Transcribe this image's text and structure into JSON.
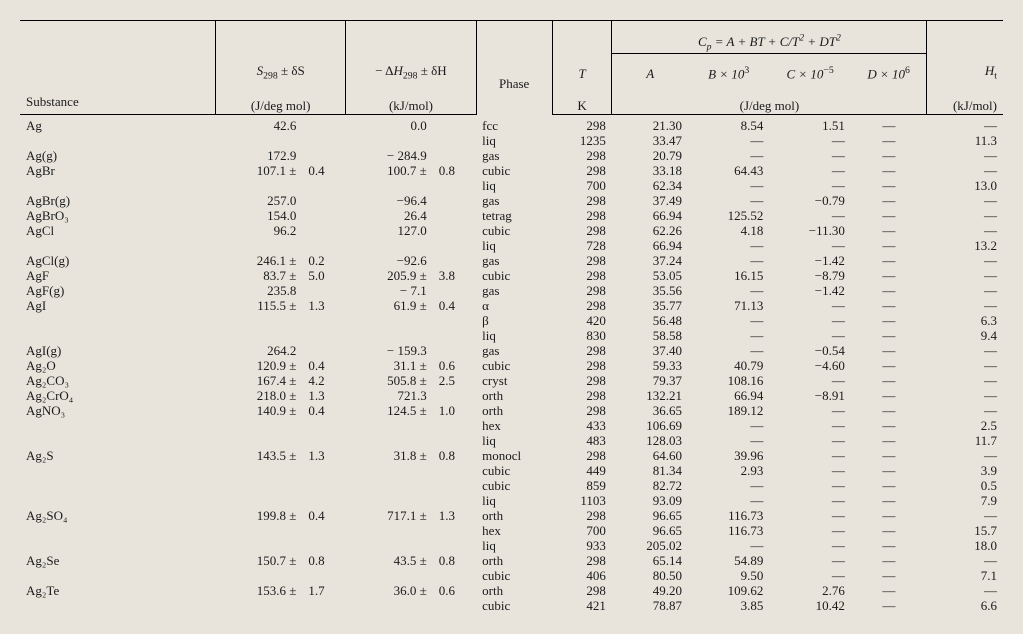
{
  "header": {
    "formula": "C_p = A + BT + C/T^2 + DT^2",
    "S_label_main": "S",
    "S_label_sub": "298",
    "S_label_err": " ± δS",
    "S_units": "(J/deg mol)",
    "H_label_prefix": "− Δ",
    "H_label_main": "H",
    "H_label_sub": "298",
    "H_label_err": "  ± δH",
    "H_units": "(kJ/mol)",
    "phase": "Phase",
    "T_label": "T",
    "T_units": "K",
    "A_label": "A",
    "B_label": "B × 10",
    "B_exp": "3",
    "C_label": "C × 10",
    "C_exp": "−5",
    "D_label": "D × 10",
    "D_exp": "6",
    "Cp_units": "(J/deg mol)",
    "Ht_label": "H",
    "Ht_sub": "t",
    "Ht_units": "(kJ/mol)",
    "substance": "Substance"
  },
  "dash": "—",
  "rows": [
    {
      "sub": "Ag",
      "S": "42.6",
      "Se": "",
      "H": "0.0",
      "He": "",
      "ph": "fcc",
      "T": "298",
      "A": "21.30",
      "B": "8.54",
      "C": "1.51",
      "D": "—",
      "Ht": "—"
    },
    {
      "sub": "",
      "S": "",
      "Se": "",
      "H": "",
      "He": "",
      "ph": "liq",
      "T": "1235",
      "A": "33.47",
      "B": "—",
      "C": "—",
      "D": "—",
      "Ht": "11.3"
    },
    {
      "sub": "Ag(g)",
      "S": "172.9",
      "Se": "",
      "H": "− 284.9",
      "He": "",
      "ph": "gas",
      "T": "298",
      "A": "20.79",
      "B": "—",
      "C": "—",
      "D": "—",
      "Ht": "—"
    },
    {
      "sub": "AgBr",
      "S": "107.1 ±",
      "Se": "0.4",
      "H": "100.7 ±",
      "He": "0.8",
      "ph": "cubic",
      "T": "298",
      "A": "33.18",
      "B": "64.43",
      "C": "—",
      "D": "—",
      "Ht": "—"
    },
    {
      "sub": "",
      "S": "",
      "Se": "",
      "H": "",
      "He": "",
      "ph": "liq",
      "T": "700",
      "A": "62.34",
      "B": "—",
      "C": "—",
      "D": "—",
      "Ht": "13.0"
    },
    {
      "sub": "AgBr(g)",
      "S": "257.0",
      "Se": "",
      "H": "−96.4",
      "He": "",
      "ph": "gas",
      "T": "298",
      "A": "37.49",
      "B": "—",
      "C": "−0.79",
      "D": "—",
      "Ht": "—"
    },
    {
      "sub": "AgBrO₃",
      "S": "154.0",
      "Se": "",
      "H": "26.4",
      "He": "",
      "ph": "tetrag",
      "T": "298",
      "A": "66.94",
      "B": "125.52",
      "C": "—",
      "D": "—",
      "Ht": "—"
    },
    {
      "sub": "AgCl",
      "S": "96.2",
      "Se": "",
      "H": "127.0",
      "He": "",
      "ph": "cubic",
      "T": "298",
      "A": "62.26",
      "B": "4.18",
      "C": "−11.30",
      "D": "—",
      "Ht": "—"
    },
    {
      "sub": "",
      "S": "",
      "Se": "",
      "H": "",
      "He": "",
      "ph": "liq",
      "T": "728",
      "A": "66.94",
      "B": "—",
      "C": "—",
      "D": "—",
      "Ht": "13.2"
    },
    {
      "sub": "AgCl(g)",
      "S": "246.1 ±",
      "Se": "0.2",
      "H": "−92.6",
      "He": "",
      "ph": "gas",
      "T": "298",
      "A": "37.24",
      "B": "—",
      "C": "−1.42",
      "D": "—",
      "Ht": "—"
    },
    {
      "sub": "AgF",
      "S": "83.7 ±",
      "Se": "5.0",
      "H": "205.9 ±",
      "He": "3.8",
      "ph": "cubic",
      "T": "298",
      "A": "53.05",
      "B": "16.15",
      "C": "−8.79",
      "D": "—",
      "Ht": "—"
    },
    {
      "sub": "AgF(g)",
      "S": "235.8",
      "Se": "",
      "H": "−  7.1",
      "He": "",
      "ph": "gas",
      "T": "298",
      "A": "35.56",
      "B": "—",
      "C": "−1.42",
      "D": "—",
      "Ht": "—"
    },
    {
      "sub": "AgI",
      "S": "115.5 ±",
      "Se": "1.3",
      "H": "61.9 ±",
      "He": "0.4",
      "ph": "α",
      "T": "298",
      "A": "35.77",
      "B": "71.13",
      "C": "—",
      "D": "—",
      "Ht": "—"
    },
    {
      "sub": "",
      "S": "",
      "Se": "",
      "H": "",
      "He": "",
      "ph": "β",
      "T": "420",
      "A": "56.48",
      "B": "—",
      "C": "—",
      "D": "—",
      "Ht": "6.3"
    },
    {
      "sub": "",
      "S": "",
      "Se": "",
      "H": "",
      "He": "",
      "ph": "liq",
      "T": "830",
      "A": "58.58",
      "B": "—",
      "C": "—",
      "D": "—",
      "Ht": "9.4"
    },
    {
      "sub": "AgI(g)",
      "S": "264.2",
      "Se": "",
      "H": "− 159.3",
      "He": "",
      "ph": "gas",
      "T": "298",
      "A": "37.40",
      "B": "—",
      "C": "−0.54",
      "D": "—",
      "Ht": "—"
    },
    {
      "sub": "Ag₂O",
      "S": "120.9 ±",
      "Se": "0.4",
      "H": "31.1 ±",
      "He": "0.6",
      "ph": "cubic",
      "T": "298",
      "A": "59.33",
      "B": "40.79",
      "C": "−4.60",
      "D": "—",
      "Ht": "—"
    },
    {
      "sub": "Ag₂CO₃",
      "S": "167.4 ±",
      "Se": "4.2",
      "H": "505.8 ±",
      "He": "2.5",
      "ph": "cryst",
      "T": "298",
      "A": "79.37",
      "B": "108.16",
      "C": "—",
      "D": "—",
      "Ht": "—"
    },
    {
      "sub": "Ag₂CrO₄",
      "S": "218.0 ±",
      "Se": "1.3",
      "H": "721.3",
      "He": "",
      "ph": "orth",
      "T": "298",
      "A": "132.21",
      "B": "66.94",
      "C": "−8.91",
      "D": "—",
      "Ht": "—"
    },
    {
      "sub": "AgNO₃",
      "S": "140.9 ±",
      "Se": "0.4",
      "H": "124.5 ±",
      "He": "1.0",
      "ph": "orth",
      "T": "298",
      "A": "36.65",
      "B": "189.12",
      "C": "—",
      "D": "—",
      "Ht": "—"
    },
    {
      "sub": "",
      "S": "",
      "Se": "",
      "H": "",
      "He": "",
      "ph": "hex",
      "T": "433",
      "A": "106.69",
      "B": "—",
      "C": "—",
      "D": "—",
      "Ht": "2.5"
    },
    {
      "sub": "",
      "S": "",
      "Se": "",
      "H": "",
      "He": "",
      "ph": "liq",
      "T": "483",
      "A": "128.03",
      "B": "—",
      "C": "—",
      "D": "—",
      "Ht": "11.7"
    },
    {
      "sub": "Ag₂S",
      "S": "143.5 ±",
      "Se": "1.3",
      "H": "31.8 ±",
      "He": "0.8",
      "ph": "monocl",
      "T": "298",
      "A": "64.60",
      "B": "39.96",
      "C": "—",
      "D": "—",
      "Ht": "—"
    },
    {
      "sub": "",
      "S": "",
      "Se": "",
      "H": "",
      "He": "",
      "ph": "cubic",
      "T": "449",
      "A": "81.34",
      "B": "2.93",
      "C": "—",
      "D": "—",
      "Ht": "3.9"
    },
    {
      "sub": "",
      "S": "",
      "Se": "",
      "H": "",
      "He": "",
      "ph": "cubic",
      "T": "859",
      "A": "82.72",
      "B": "—",
      "C": "—",
      "D": "—",
      "Ht": "0.5"
    },
    {
      "sub": "",
      "S": "",
      "Se": "",
      "H": "",
      "He": "",
      "ph": "liq",
      "T": "1103",
      "A": "93.09",
      "B": "—",
      "C": "—",
      "D": "—",
      "Ht": "7.9"
    },
    {
      "sub": "Ag₂SO₄",
      "S": "199.8 ±",
      "Se": "0.4",
      "H": "717.1 ±",
      "He": "1.3",
      "ph": "orth",
      "T": "298",
      "A": "96.65",
      "B": "116.73",
      "C": "—",
      "D": "—",
      "Ht": "—"
    },
    {
      "sub": "",
      "S": "",
      "Se": "",
      "H": "",
      "He": "",
      "ph": "hex",
      "T": "700",
      "A": "96.65",
      "B": "116.73",
      "C": "—",
      "D": "—",
      "Ht": "15.7"
    },
    {
      "sub": "",
      "S": "",
      "Se": "",
      "H": "",
      "He": "",
      "ph": "liq",
      "T": "933",
      "A": "205.02",
      "B": "—",
      "C": "—",
      "D": "—",
      "Ht": "18.0"
    },
    {
      "sub": "Ag₂Se",
      "S": "150.7 ±",
      "Se": "0.8",
      "H": "43.5 ±",
      "He": "0.8",
      "ph": "orth",
      "T": "298",
      "A": "65.14",
      "B": "54.89",
      "C": "—",
      "D": "—",
      "Ht": "—"
    },
    {
      "sub": "",
      "S": "",
      "Se": "",
      "H": "",
      "He": "",
      "ph": "cubic",
      "T": "406",
      "A": "80.50",
      "B": "9.50",
      "C": "—",
      "D": "—",
      "Ht": "7.1"
    },
    {
      "sub": "Ag₂Te",
      "S": "153.6 ±",
      "Se": "1.7",
      "H": "36.0 ±",
      "He": "0.6",
      "ph": "orth",
      "T": "298",
      "A": "49.20",
      "B": "109.62",
      "C": "2.76",
      "D": "—",
      "Ht": "—"
    },
    {
      "sub": "",
      "S": "",
      "Se": "",
      "H": "",
      "He": "",
      "ph": "cubic",
      "T": "421",
      "A": "78.87",
      "B": "3.85",
      "C": "10.42",
      "D": "—",
      "Ht": "6.6"
    }
  ]
}
